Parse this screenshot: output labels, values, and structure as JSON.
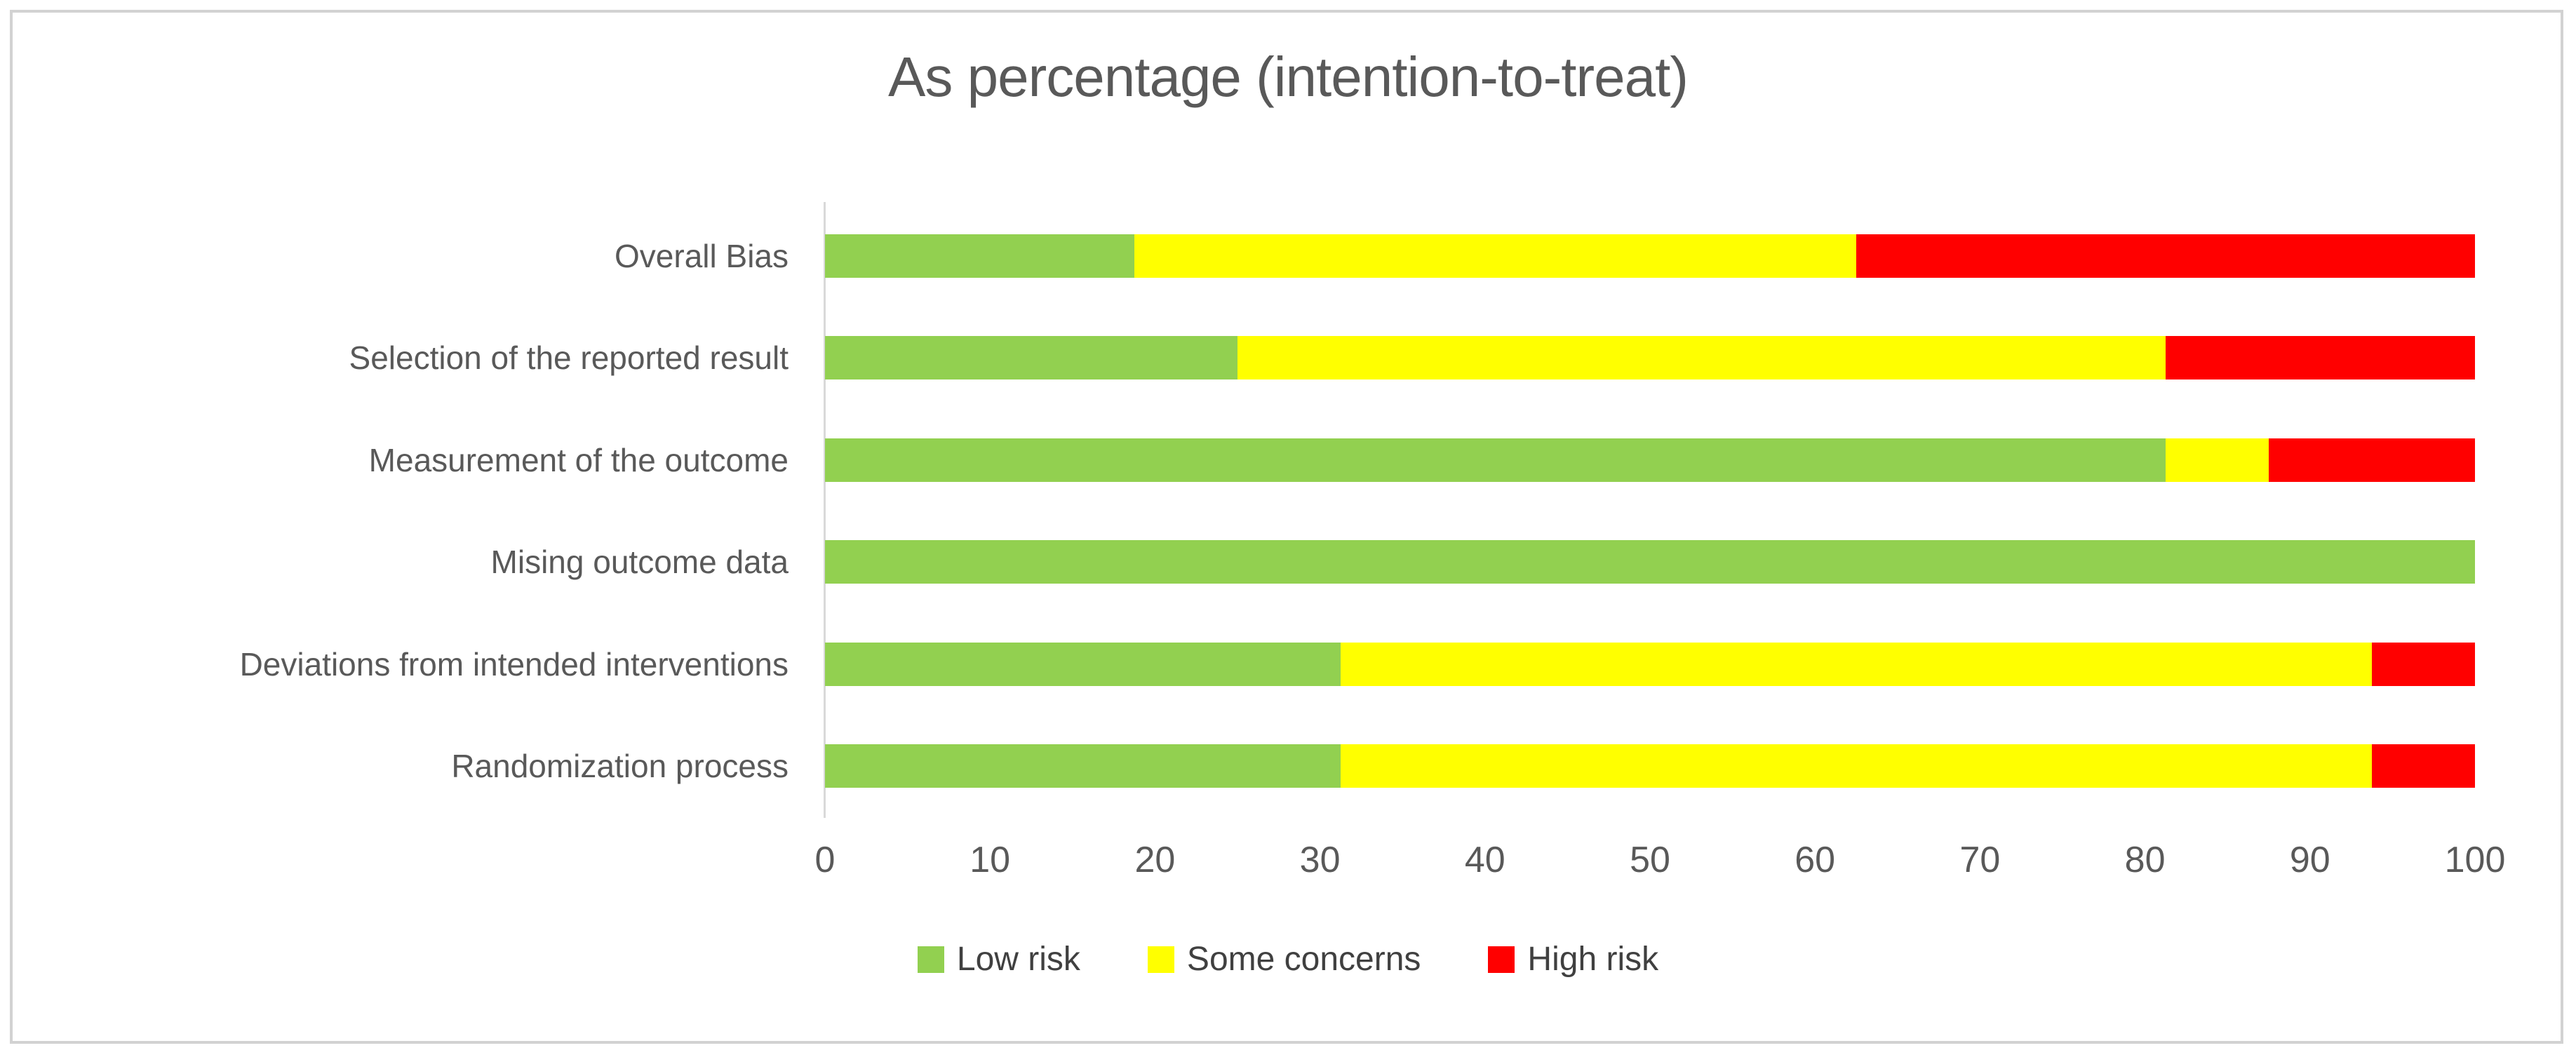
{
  "chart_data": {
    "type": "bar",
    "orientation": "horizontal",
    "stacked": true,
    "title": "As percentage (intention-to-treat)",
    "categories_top_to_bottom": [
      "Overall Bias",
      "Selection of the reported result",
      "Measurement of the outcome",
      "Mising outcome data",
      "Deviations from intended interventions",
      "Randomization process"
    ],
    "series": [
      {
        "name": "Low risk",
        "color": "#92d050",
        "values": [
          18.75,
          25.0,
          81.25,
          100.0,
          31.25,
          31.25
        ]
      },
      {
        "name": "Some concerns",
        "color": "#ffff00",
        "values": [
          43.75,
          56.25,
          6.25,
          0.0,
          62.5,
          62.5
        ]
      },
      {
        "name": "High risk",
        "color": "#ff0000",
        "values": [
          37.5,
          18.75,
          12.5,
          0.0,
          6.25,
          6.25
        ]
      }
    ],
    "xlabel": "",
    "ylabel": "",
    "xlim": [
      0,
      100
    ],
    "x_ticks": [
      0,
      10,
      20,
      30,
      40,
      50,
      60,
      70,
      80,
      90,
      100
    ],
    "grid": false,
    "legend_position": "bottom"
  },
  "legend": {
    "items": [
      {
        "label": "Low risk",
        "color": "#92d050"
      },
      {
        "label": "Some concerns",
        "color": "#ffff00"
      },
      {
        "label": "High risk",
        "color": "#ff0000"
      }
    ]
  },
  "colors": {
    "title_text": "#595959",
    "axis_text": "#595959",
    "axis_line": "#d9d9d9",
    "frame_border": "#d2d2d2",
    "background": "#ffffff"
  }
}
